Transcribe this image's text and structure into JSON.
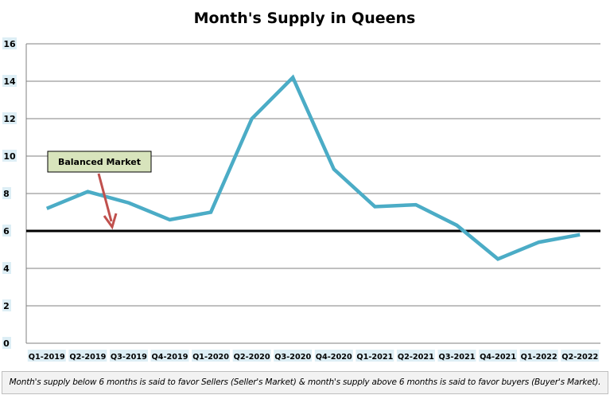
{
  "chart_data": {
    "type": "line",
    "title": "Month's Supply in Queens",
    "categories": [
      "Q1-2019",
      "Q2-2019",
      "Q3-2019",
      "Q4-2019",
      "Q1-2020",
      "Q2-2020",
      "Q3-2020",
      "Q4-2020",
      "Q1-2021",
      "Q2-2021",
      "Q3-2021",
      "Q4-2021",
      "Q1-2022",
      "Q2-2022"
    ],
    "series": [
      {
        "values": [
          7.2,
          8.1,
          7.5,
          6.6,
          7.0,
          12.0,
          14.2,
          9.3,
          7.3,
          7.4,
          6.3,
          4.5,
          5.4,
          5.8
        ],
        "color": "#4bacc6"
      }
    ],
    "ylim": [
      0,
      16
    ],
    "yticks": [
      0,
      2,
      4,
      6,
      8,
      10,
      12,
      14,
      16
    ],
    "grid": true,
    "reference_line": {
      "value": 6,
      "color": "#000000"
    },
    "annotation": {
      "label": "Balanced Market",
      "box_color": "#d8e4bc",
      "arrow_color": "#c0504d"
    },
    "tick_label_bg": "#ddeef5"
  },
  "footer": "Month's supply below 6 months is said to favor Sellers (Seller's Market) & month's supply above 6 months is said to favor buyers (Buyer's Market)."
}
